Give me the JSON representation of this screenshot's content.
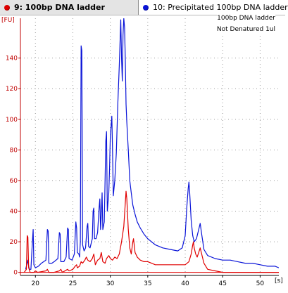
{
  "header": {
    "tabs": [
      {
        "label": "9: 100bp DNA ladder",
        "color": "#e00000",
        "selected": true
      },
      {
        "label": "10: Precipitated 100bp DNA ladder",
        "color": "#0a14d8",
        "selected": false
      }
    ]
  },
  "annotation": {
    "line1": "100bp DNA ladder",
    "line2": "Not Denatured 1ul"
  },
  "chart_data": {
    "type": "line",
    "ylabel": "[FU]",
    "xlabel": "[s]",
    "xlim": [
      18,
      52.5
    ],
    "ylim": [
      -2,
      166
    ],
    "xticks": [
      20,
      25,
      30,
      35,
      40,
      45,
      50
    ],
    "yticks": [
      0,
      20,
      40,
      60,
      80,
      100,
      120,
      140
    ],
    "grid": true,
    "legend": "top tabs",
    "series": [
      {
        "name": "10: Precipitated 100bp DNA ladder",
        "color": "#0a14d8",
        "points": [
          [
            18.7,
            2
          ],
          [
            19.0,
            8
          ],
          [
            19.1,
            4
          ],
          [
            19.2,
            2
          ],
          [
            19.4,
            2
          ],
          [
            19.6,
            20
          ],
          [
            19.7,
            28
          ],
          [
            19.8,
            5
          ],
          [
            20.0,
            3
          ],
          [
            20.4,
            4
          ],
          [
            20.8,
            6
          ],
          [
            21.4,
            8
          ],
          [
            21.6,
            28
          ],
          [
            21.7,
            27
          ],
          [
            21.8,
            6
          ],
          [
            22.2,
            6
          ],
          [
            22.5,
            7
          ],
          [
            23.0,
            9
          ],
          [
            23.2,
            26
          ],
          [
            23.3,
            25
          ],
          [
            23.4,
            7
          ],
          [
            23.8,
            7
          ],
          [
            24.1,
            10
          ],
          [
            24.3,
            29
          ],
          [
            24.4,
            28
          ],
          [
            24.5,
            9
          ],
          [
            24.9,
            8
          ],
          [
            25.2,
            12
          ],
          [
            25.4,
            33
          ],
          [
            25.5,
            29
          ],
          [
            25.6,
            13
          ],
          [
            25.8,
            12
          ],
          [
            25.9,
            10
          ],
          [
            26.0,
            20
          ],
          [
            26.1,
            148
          ],
          [
            26.2,
            145
          ],
          [
            26.3,
            18
          ],
          [
            26.5,
            14
          ],
          [
            26.7,
            16
          ],
          [
            26.9,
            30
          ],
          [
            27.0,
            32
          ],
          [
            27.1,
            17
          ],
          [
            27.3,
            16
          ],
          [
            27.6,
            22
          ],
          [
            27.7,
            40
          ],
          [
            27.8,
            42
          ],
          [
            27.9,
            22
          ],
          [
            28.1,
            22
          ],
          [
            28.3,
            26
          ],
          [
            28.5,
            42
          ],
          [
            28.6,
            48
          ],
          [
            28.7,
            28
          ],
          [
            28.8,
            38
          ],
          [
            28.9,
            52
          ],
          [
            29.0,
            28
          ],
          [
            29.2,
            33
          ],
          [
            29.4,
            86
          ],
          [
            29.5,
            92
          ],
          [
            29.6,
            40
          ],
          [
            29.8,
            52
          ],
          [
            29.9,
            68
          ],
          [
            30.0,
            90
          ],
          [
            30.1,
            95
          ],
          [
            30.2,
            102
          ],
          [
            30.3,
            80
          ],
          [
            30.4,
            50
          ],
          [
            30.6,
            60
          ],
          [
            30.8,
            78
          ],
          [
            31.0,
            110
          ],
          [
            31.2,
            135
          ],
          [
            31.4,
            165
          ],
          [
            31.5,
            140
          ],
          [
            31.6,
            125
          ],
          [
            31.7,
            155
          ],
          [
            31.8,
            166
          ],
          [
            31.9,
            160
          ],
          [
            32.0,
            140
          ],
          [
            32.1,
            110
          ],
          [
            32.2,
            98
          ],
          [
            32.4,
            80
          ],
          [
            32.6,
            60
          ],
          [
            32.8,
            52
          ],
          [
            33.0,
            44
          ],
          [
            33.3,
            38
          ],
          [
            33.6,
            33
          ],
          [
            34.0,
            29
          ],
          [
            34.5,
            25
          ],
          [
            35.0,
            22
          ],
          [
            35.5,
            20
          ],
          [
            36.0,
            18
          ],
          [
            37.0,
            16
          ],
          [
            38.0,
            15
          ],
          [
            39.0,
            14
          ],
          [
            39.6,
            16
          ],
          [
            40.0,
            24
          ],
          [
            40.2,
            42
          ],
          [
            40.4,
            55
          ],
          [
            40.5,
            59
          ],
          [
            40.6,
            52
          ],
          [
            40.8,
            34
          ],
          [
            41.0,
            24
          ],
          [
            41.2,
            20
          ],
          [
            41.5,
            22
          ],
          [
            41.8,
            28
          ],
          [
            42.0,
            32
          ],
          [
            42.2,
            25
          ],
          [
            42.5,
            15
          ],
          [
            43.0,
            11
          ],
          [
            44.0,
            9
          ],
          [
            45.0,
            8
          ],
          [
            46.0,
            8
          ],
          [
            47.0,
            7
          ],
          [
            48.0,
            6
          ],
          [
            49.0,
            6
          ],
          [
            50.0,
            5
          ],
          [
            51.0,
            4
          ],
          [
            52.0,
            4
          ],
          [
            52.5,
            3
          ]
        ]
      },
      {
        "name": "9: 100bp DNA ladder",
        "color": "#e00000",
        "points": [
          [
            18.5,
            0
          ],
          [
            18.8,
            2
          ],
          [
            18.9,
            24
          ],
          [
            19.0,
            23
          ],
          [
            19.1,
            3
          ],
          [
            19.3,
            0
          ],
          [
            19.8,
            0
          ],
          [
            20.0,
            1
          ],
          [
            20.3,
            0
          ],
          [
            21.4,
            1
          ],
          [
            21.6,
            2
          ],
          [
            21.8,
            0
          ],
          [
            22.5,
            0
          ],
          [
            23.2,
            1
          ],
          [
            23.4,
            2
          ],
          [
            23.6,
            0
          ],
          [
            24.3,
            2
          ],
          [
            24.5,
            1
          ],
          [
            25.0,
            2
          ],
          [
            25.3,
            4
          ],
          [
            25.5,
            5
          ],
          [
            25.6,
            3
          ],
          [
            25.9,
            4
          ],
          [
            26.1,
            7
          ],
          [
            26.3,
            6
          ],
          [
            26.6,
            8
          ],
          [
            26.8,
            10
          ],
          [
            27.0,
            8
          ],
          [
            27.3,
            7
          ],
          [
            27.6,
            9
          ],
          [
            27.8,
            12
          ],
          [
            28.0,
            5
          ],
          [
            28.3,
            8
          ],
          [
            28.6,
            9
          ],
          [
            28.8,
            13
          ],
          [
            29.0,
            7
          ],
          [
            29.3,
            6
          ],
          [
            29.5,
            9
          ],
          [
            29.8,
            11
          ],
          [
            30.0,
            9
          ],
          [
            30.3,
            8
          ],
          [
            30.6,
            10
          ],
          [
            30.9,
            9
          ],
          [
            31.2,
            12
          ],
          [
            31.5,
            20
          ],
          [
            31.8,
            30
          ],
          [
            32.0,
            45
          ],
          [
            32.1,
            53
          ],
          [
            32.2,
            48
          ],
          [
            32.4,
            28
          ],
          [
            32.6,
            16
          ],
          [
            32.8,
            12
          ],
          [
            33.0,
            20
          ],
          [
            33.1,
            22
          ],
          [
            33.3,
            13
          ],
          [
            33.6,
            10
          ],
          [
            34.0,
            8
          ],
          [
            34.5,
            7
          ],
          [
            35.0,
            7
          ],
          [
            35.5,
            6
          ],
          [
            36.0,
            5
          ],
          [
            37.0,
            5
          ],
          [
            38.0,
            5
          ],
          [
            39.0,
            5
          ],
          [
            40.0,
            5
          ],
          [
            40.5,
            7
          ],
          [
            40.8,
            12
          ],
          [
            41.0,
            18
          ],
          [
            41.1,
            20
          ],
          [
            41.2,
            16
          ],
          [
            41.4,
            12
          ],
          [
            41.6,
            10
          ],
          [
            41.8,
            13
          ],
          [
            42.0,
            16
          ],
          [
            42.2,
            12
          ],
          [
            42.5,
            6
          ],
          [
            43.0,
            2
          ],
          [
            44.0,
            1
          ],
          [
            45.0,
            0
          ],
          [
            46.0,
            0
          ],
          [
            47.0,
            0
          ],
          [
            48.0,
            0
          ],
          [
            49.0,
            0
          ],
          [
            50.0,
            0
          ],
          [
            51.0,
            0
          ],
          [
            52.0,
            0
          ],
          [
            52.5,
            0
          ]
        ]
      }
    ]
  }
}
